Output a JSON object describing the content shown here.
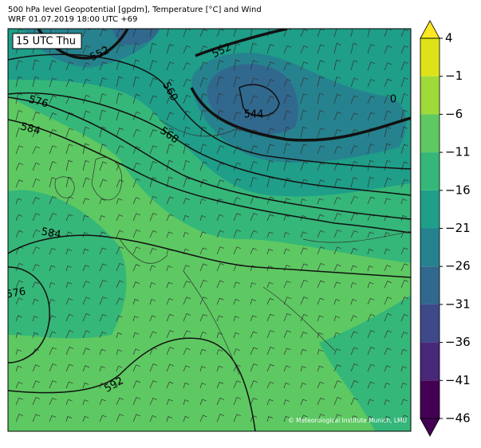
{
  "title": "500 hPa level Geopotential [gpdm], Temperature [°C] and Wind",
  "subtitle": "WRF 01.07.2019 18:00 UTC +69",
  "time_label": "15 UTC Thu",
  "credit": "© Meteorological Institute Munich, LMU",
  "contour_labels": [
    552,
    552,
    560,
    568,
    576,
    584,
    584,
    576,
    592,
    544,
    0
  ],
  "colorbar": {
    "lim": [
      -46,
      4
    ],
    "ticks": [
      4,
      {
        "value": -1,
        "label": "−1"
      },
      {
        "value": -6,
        "label": "−6"
      },
      {
        "value": -11,
        "label": "−11"
      },
      {
        "value": -16,
        "label": "−16"
      },
      {
        "value": -21,
        "label": "−21"
      },
      {
        "value": -26,
        "label": "−26"
      },
      {
        "value": -31,
        "label": "−31"
      },
      {
        "value": -36,
        "label": "−36"
      },
      {
        "value": -41,
        "label": "−41"
      },
      {
        "value": -46,
        "label": "−46"
      }
    ],
    "colors": [
      "#dde318",
      "#9fda3a",
      "#5ec962",
      "#35b779",
      "#1f9e89",
      "#26828e",
      "#31688e",
      "#3e4989",
      "#482878",
      "#440154"
    ],
    "extend_colors": [
      "#fde725",
      "#440154"
    ]
  }
}
